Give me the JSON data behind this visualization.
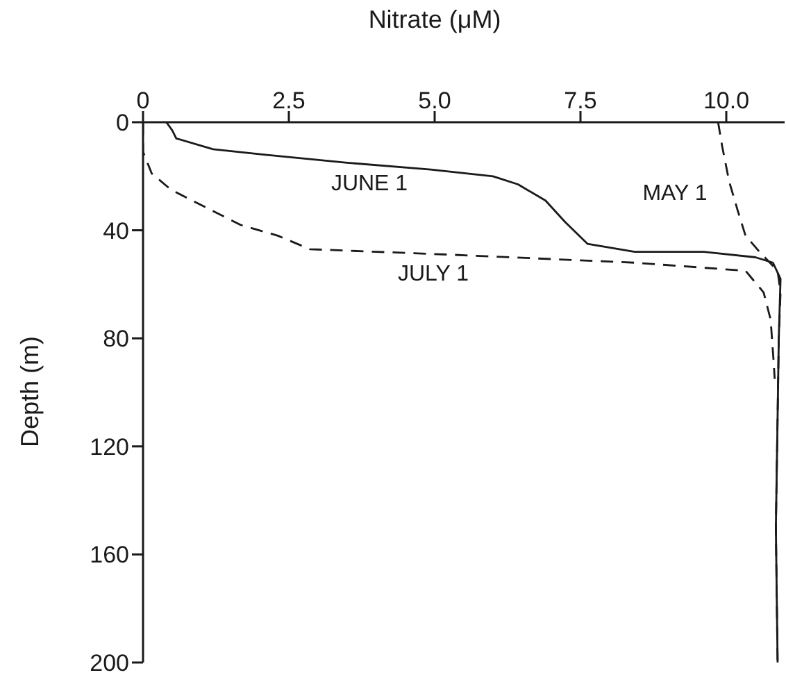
{
  "chart_data": {
    "type": "line",
    "xlabel": "Nitrate (μM)",
    "ylabel": "Depth (m)",
    "xlim": [
      0,
      11
    ],
    "xticks": [
      0,
      {
        "value": 2.5,
        "label": "2.5"
      },
      {
        "value": 5,
        "label": "5.0"
      },
      {
        "value": 7.5,
        "label": "7.5"
      },
      {
        "value": 10,
        "label": "10.0"
      }
    ],
    "ylim": [
      200,
      0
    ],
    "yticks": [
      0,
      40,
      80,
      120,
      160,
      200
    ],
    "grid": false,
    "legend": false,
    "marker": "none",
    "series": [
      {
        "name": "JUNE 1",
        "color": "#1a1a1a",
        "line_style": "solid",
        "x": [
          0.4,
          0.5,
          0.57,
          1.2,
          2.07,
          3.5,
          4.93,
          6.0,
          6.43,
          6.9,
          7.24,
          7.62,
          8.43,
          9.62,
          10.5,
          10.8,
          10.93,
          10.9,
          10.88,
          10.85,
          10.88
        ],
        "values": [
          0,
          3,
          6,
          10,
          12,
          15,
          17.5,
          20,
          23,
          29,
          37,
          45,
          48,
          48,
          50,
          52,
          58,
          80,
          109,
          150,
          200
        ]
      },
      {
        "name": "MAY 1",
        "color": "#1a1a1a",
        "line_style": "dashed",
        "x": [
          9.86,
          9.93,
          10.05,
          10.2,
          10.33,
          10.57,
          10.88,
          10.93,
          10.9,
          10.88,
          10.85,
          10.88
        ],
        "values": [
          0,
          9,
          22,
          33,
          42,
          48,
          55,
          63,
          80,
          109,
          150,
          200
        ]
      },
      {
        "name": "JULY 1",
        "color": "#1a1a1a",
        "line_style": "dashed",
        "x": [
          0,
          0,
          0.15,
          0.48,
          1.67,
          2.31,
          2.86,
          5.24,
          8.43,
          10.33,
          10.64,
          10.76,
          10.81,
          10.83
        ],
        "values": [
          0,
          11,
          19,
          25,
          38,
          42,
          47,
          49,
          52,
          55,
          63,
          73,
          88,
          95
        ]
      }
    ]
  }
}
